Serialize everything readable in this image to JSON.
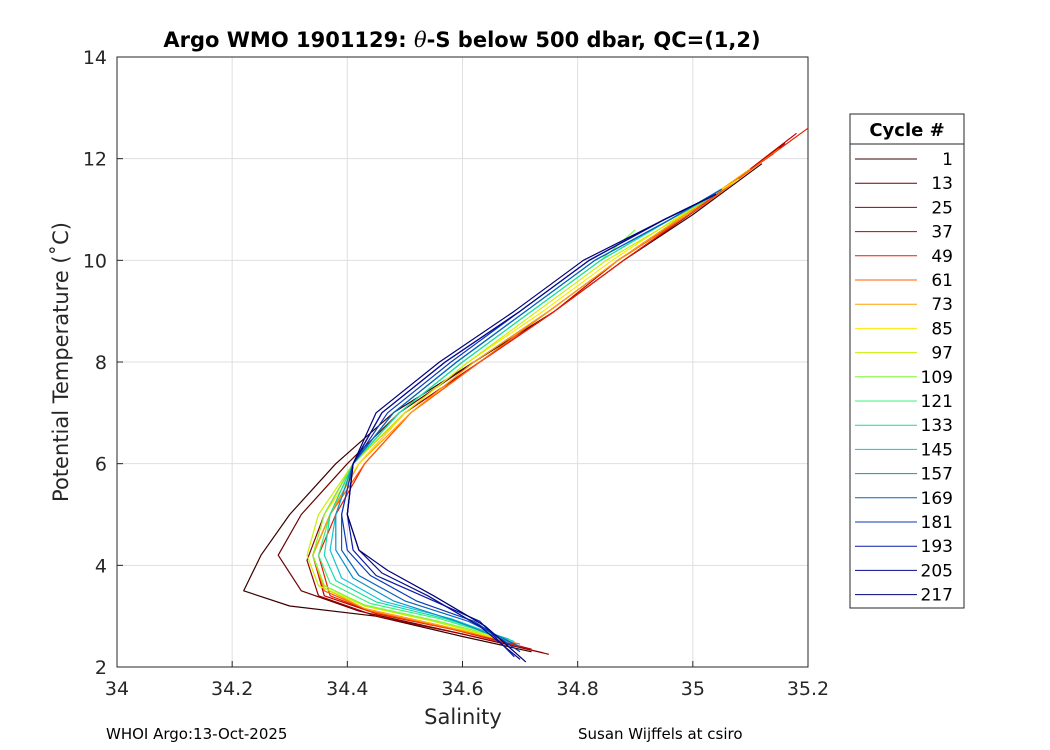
{
  "chart_data": {
    "type": "line",
    "title_prefix": "Argo WMO 1901129: ",
    "title_theta": "θ",
    "title_suffix": "-S below 500 dbar,  QC=(1,2)",
    "xlabel": "Salinity",
    "ylabel": "Potential Temperature (˚C)",
    "xlim": [
      34,
      35.2
    ],
    "ylim": [
      2,
      14
    ],
    "xticks": [
      34,
      34.2,
      34.4,
      34.6,
      34.8,
      35,
      35.2
    ],
    "xtick_labels": [
      "34",
      "34.2",
      "34.4",
      "34.6",
      "34.8",
      "35",
      "35.2"
    ],
    "yticks": [
      2,
      4,
      6,
      8,
      10,
      12,
      14
    ],
    "ytick_labels": [
      "2",
      "4",
      "6",
      "8",
      "10",
      "12",
      "14"
    ],
    "grid": true,
    "legend_title": "Cycle #",
    "legend_position": "right",
    "series": [
      {
        "name": "1",
        "color": "#3a0000",
        "points": [
          [
            34.72,
            2.3
          ],
          [
            34.6,
            2.6
          ],
          [
            34.45,
            3.0
          ],
          [
            34.3,
            3.2
          ],
          [
            34.22,
            3.5
          ],
          [
            34.25,
            4.2
          ],
          [
            34.3,
            5.0
          ],
          [
            34.38,
            6.0
          ],
          [
            34.48,
            7.0
          ],
          [
            34.62,
            8.0
          ],
          [
            34.76,
            9.0
          ],
          [
            34.88,
            10.0
          ],
          [
            35.0,
            10.9
          ],
          [
            35.12,
            11.9
          ]
        ]
      },
      {
        "name": "13",
        "color": "#6b0000",
        "points": [
          [
            34.74,
            2.28
          ],
          [
            34.58,
            2.7
          ],
          [
            34.42,
            3.1
          ],
          [
            34.32,
            3.5
          ],
          [
            34.28,
            4.2
          ],
          [
            34.32,
            5.0
          ],
          [
            34.4,
            6.0
          ],
          [
            34.49,
            7.0
          ],
          [
            34.62,
            8.0
          ],
          [
            34.75,
            9.0
          ],
          [
            34.87,
            10.0
          ],
          [
            35.0,
            11.0
          ],
          [
            35.14,
            12.1
          ]
        ]
      },
      {
        "name": "25",
        "color": "#960000",
        "points": [
          [
            34.75,
            2.25
          ],
          [
            34.6,
            2.65
          ],
          [
            34.45,
            3.0
          ],
          [
            34.35,
            3.4
          ],
          [
            34.33,
            4.1
          ],
          [
            34.36,
            5.0
          ],
          [
            34.41,
            6.0
          ],
          [
            34.5,
            7.0
          ],
          [
            34.63,
            8.0
          ],
          [
            34.76,
            9.0
          ],
          [
            34.88,
            10.0
          ],
          [
            35.02,
            11.1
          ],
          [
            35.16,
            12.3
          ]
        ]
      },
      {
        "name": "37",
        "color": "#c00000",
        "points": [
          [
            34.72,
            2.35
          ],
          [
            34.6,
            2.7
          ],
          [
            34.45,
            3.05
          ],
          [
            34.36,
            3.4
          ],
          [
            34.34,
            4.2
          ],
          [
            34.37,
            5.0
          ],
          [
            34.42,
            6.0
          ],
          [
            34.5,
            7.0
          ],
          [
            34.63,
            8.0
          ],
          [
            34.76,
            9.0
          ],
          [
            34.87,
            10.0
          ],
          [
            35.02,
            11.1
          ],
          [
            35.18,
            12.5
          ]
        ]
      },
      {
        "name": "49",
        "color": "#ea1d00",
        "points": [
          [
            34.7,
            2.4
          ],
          [
            34.58,
            2.75
          ],
          [
            34.45,
            3.05
          ],
          [
            34.37,
            3.4
          ],
          [
            34.35,
            4.2
          ],
          [
            34.38,
            5.0
          ],
          [
            34.43,
            6.0
          ],
          [
            34.51,
            7.0
          ],
          [
            34.63,
            8.0
          ],
          [
            34.76,
            9.0
          ],
          [
            34.88,
            10.0
          ],
          [
            35.03,
            11.2
          ],
          [
            35.2,
            12.6
          ]
        ]
      },
      {
        "name": "61",
        "color": "#ff5c00",
        "points": [
          [
            34.7,
            2.45
          ],
          [
            34.56,
            2.8
          ],
          [
            34.44,
            3.1
          ],
          [
            34.36,
            3.5
          ],
          [
            34.34,
            4.2
          ],
          [
            34.37,
            5.0
          ],
          [
            34.43,
            6.0
          ],
          [
            34.51,
            7.0
          ],
          [
            34.63,
            8.0
          ],
          [
            34.75,
            9.0
          ],
          [
            34.87,
            10.0
          ],
          [
            35.02,
            11.1
          ],
          [
            35.15,
            12.2
          ]
        ]
      },
      {
        "name": "73",
        "color": "#ffa000",
        "points": [
          [
            34.69,
            2.48
          ],
          [
            34.55,
            2.85
          ],
          [
            34.43,
            3.15
          ],
          [
            34.36,
            3.55
          ],
          [
            34.34,
            4.2
          ],
          [
            34.37,
            5.0
          ],
          [
            34.42,
            6.0
          ],
          [
            34.51,
            7.0
          ],
          [
            34.62,
            8.0
          ],
          [
            34.75,
            9.0
          ],
          [
            34.87,
            10.0
          ],
          [
            35.0,
            11.0
          ],
          [
            35.1,
            11.8
          ]
        ]
      },
      {
        "name": "85",
        "color": "#ffe600",
        "points": [
          [
            34.68,
            2.5
          ],
          [
            34.55,
            2.9
          ],
          [
            34.43,
            3.2
          ],
          [
            34.36,
            3.6
          ],
          [
            34.34,
            4.2
          ],
          [
            34.36,
            5.0
          ],
          [
            34.42,
            6.0
          ],
          [
            34.5,
            7.0
          ],
          [
            34.61,
            8.0
          ],
          [
            34.74,
            9.0
          ],
          [
            34.86,
            10.0
          ],
          [
            34.98,
            10.9
          ],
          [
            35.08,
            11.6
          ]
        ]
      },
      {
        "name": "97",
        "color": "#c8f000",
        "points": [
          [
            34.68,
            2.52
          ],
          [
            34.55,
            2.9
          ],
          [
            34.43,
            3.2
          ],
          [
            34.35,
            3.6
          ],
          [
            34.33,
            4.2
          ],
          [
            34.35,
            5.0
          ],
          [
            34.41,
            6.0
          ],
          [
            34.5,
            7.0
          ],
          [
            34.61,
            8.0
          ],
          [
            34.73,
            9.0
          ],
          [
            34.85,
            10.0
          ],
          [
            34.97,
            10.8
          ],
          [
            35.05,
            11.4
          ]
        ]
      },
      {
        "name": "109",
        "color": "#7df53a",
        "points": [
          [
            34.68,
            2.55
          ],
          [
            34.55,
            2.92
          ],
          [
            34.43,
            3.22
          ],
          [
            34.36,
            3.6
          ],
          [
            34.34,
            4.2
          ],
          [
            34.36,
            5.0
          ],
          [
            34.41,
            6.0
          ],
          [
            34.49,
            7.0
          ],
          [
            34.6,
            8.0
          ],
          [
            34.72,
            9.0
          ],
          [
            34.84,
            10.0
          ],
          [
            34.9,
            10.6
          ]
        ]
      },
      {
        "name": "121",
        "color": "#3df07a",
        "points": [
          [
            34.68,
            2.55
          ],
          [
            34.56,
            2.95
          ],
          [
            34.44,
            3.25
          ],
          [
            34.37,
            3.65
          ],
          [
            34.35,
            4.2
          ],
          [
            34.37,
            5.0
          ],
          [
            34.41,
            6.0
          ],
          [
            34.49,
            7.0
          ],
          [
            34.6,
            8.0
          ],
          [
            34.72,
            9.0
          ],
          [
            34.84,
            10.0
          ],
          [
            34.96,
            10.8
          ],
          [
            35.04,
            11.3
          ]
        ]
      },
      {
        "name": "133",
        "color": "#16dca8",
        "points": [
          [
            34.68,
            2.55
          ],
          [
            34.57,
            2.95
          ],
          [
            34.45,
            3.28
          ],
          [
            34.38,
            3.7
          ],
          [
            34.36,
            4.2
          ],
          [
            34.37,
            5.0
          ],
          [
            34.41,
            6.0
          ],
          [
            34.49,
            7.0
          ],
          [
            34.6,
            8.0
          ],
          [
            34.72,
            9.0
          ],
          [
            34.84,
            10.0
          ],
          [
            34.96,
            10.8
          ],
          [
            35.04,
            11.3
          ]
        ]
      },
      {
        "name": "145",
        "color": "#17c3d6",
        "points": [
          [
            34.69,
            2.5
          ],
          [
            34.58,
            2.95
          ],
          [
            34.46,
            3.3
          ],
          [
            34.39,
            3.75
          ],
          [
            34.37,
            4.3
          ],
          [
            34.38,
            5.0
          ],
          [
            34.41,
            6.0
          ],
          [
            34.48,
            7.0
          ],
          [
            34.59,
            8.0
          ],
          [
            34.71,
            9.0
          ],
          [
            34.83,
            10.0
          ],
          [
            34.96,
            10.8
          ],
          [
            35.05,
            11.4
          ]
        ]
      },
      {
        "name": "157",
        "color": "#0b93c9",
        "points": [
          [
            34.69,
            2.45
          ],
          [
            34.59,
            2.9
          ],
          [
            34.48,
            3.3
          ],
          [
            34.41,
            3.75
          ],
          [
            34.38,
            4.3
          ],
          [
            34.38,
            5.0
          ],
          [
            34.41,
            6.0
          ],
          [
            34.48,
            7.0
          ],
          [
            34.59,
            8.0
          ],
          [
            34.71,
            9.0
          ],
          [
            34.83,
            10.0
          ],
          [
            34.96,
            10.8
          ],
          [
            35.05,
            11.4
          ]
        ]
      },
      {
        "name": "169",
        "color": "#0a62bf",
        "points": [
          [
            34.7,
            2.4
          ],
          [
            34.61,
            2.9
          ],
          [
            34.5,
            3.3
          ],
          [
            34.42,
            3.8
          ],
          [
            34.39,
            4.3
          ],
          [
            34.39,
            5.0
          ],
          [
            34.41,
            6.0
          ],
          [
            34.48,
            7.0
          ],
          [
            34.59,
            8.0
          ],
          [
            34.71,
            9.0
          ],
          [
            34.83,
            10.0
          ],
          [
            34.96,
            10.8
          ],
          [
            35.05,
            11.4
          ]
        ]
      },
      {
        "name": "181",
        "color": "#0a39b4",
        "points": [
          [
            34.7,
            2.3
          ],
          [
            34.62,
            2.9
          ],
          [
            34.52,
            3.3
          ],
          [
            34.44,
            3.8
          ],
          [
            34.4,
            4.3
          ],
          [
            34.39,
            5.0
          ],
          [
            34.41,
            6.0
          ],
          [
            34.47,
            7.0
          ],
          [
            34.58,
            8.0
          ],
          [
            34.7,
            9.0
          ],
          [
            34.82,
            10.0
          ],
          [
            34.95,
            10.8
          ],
          [
            35.04,
            11.3
          ]
        ]
      },
      {
        "name": "193",
        "color": "#0a1aa6",
        "points": [
          [
            34.69,
            2.2
          ],
          [
            34.63,
            2.9
          ],
          [
            34.53,
            3.4
          ],
          [
            34.45,
            3.8
          ],
          [
            34.41,
            4.3
          ],
          [
            34.4,
            5.0
          ],
          [
            34.41,
            6.0
          ],
          [
            34.46,
            7.0
          ],
          [
            34.57,
            8.0
          ],
          [
            34.7,
            9.0
          ],
          [
            34.82,
            10.0
          ],
          [
            34.95,
            10.8
          ],
          [
            35.04,
            11.3
          ]
        ]
      },
      {
        "name": "205",
        "color": "#0a0a8e",
        "points": [
          [
            34.7,
            2.15
          ],
          [
            34.63,
            2.8
          ],
          [
            34.54,
            3.4
          ],
          [
            34.46,
            3.85
          ],
          [
            34.42,
            4.3
          ],
          [
            34.4,
            5.0
          ],
          [
            34.41,
            6.0
          ],
          [
            34.46,
            7.0
          ],
          [
            34.57,
            8.0
          ],
          [
            34.7,
            9.0
          ],
          [
            34.82,
            10.0
          ],
          [
            34.95,
            10.8
          ],
          [
            35.04,
            11.3
          ]
        ]
      },
      {
        "name": "217",
        "color": "#00007a",
        "points": [
          [
            34.71,
            2.1
          ],
          [
            34.64,
            2.8
          ],
          [
            34.55,
            3.4
          ],
          [
            34.47,
            3.9
          ],
          [
            34.42,
            4.3
          ],
          [
            34.4,
            5.0
          ],
          [
            34.41,
            6.0
          ],
          [
            34.45,
            7.0
          ],
          [
            34.56,
            8.0
          ],
          [
            34.69,
            9.0
          ],
          [
            34.81,
            10.0
          ],
          [
            34.95,
            10.8
          ],
          [
            35.04,
            11.3
          ]
        ]
      }
    ]
  },
  "footer": {
    "left": "WHOI Argo:13-Oct-2025",
    "right": "Susan Wijffels at csiro"
  }
}
